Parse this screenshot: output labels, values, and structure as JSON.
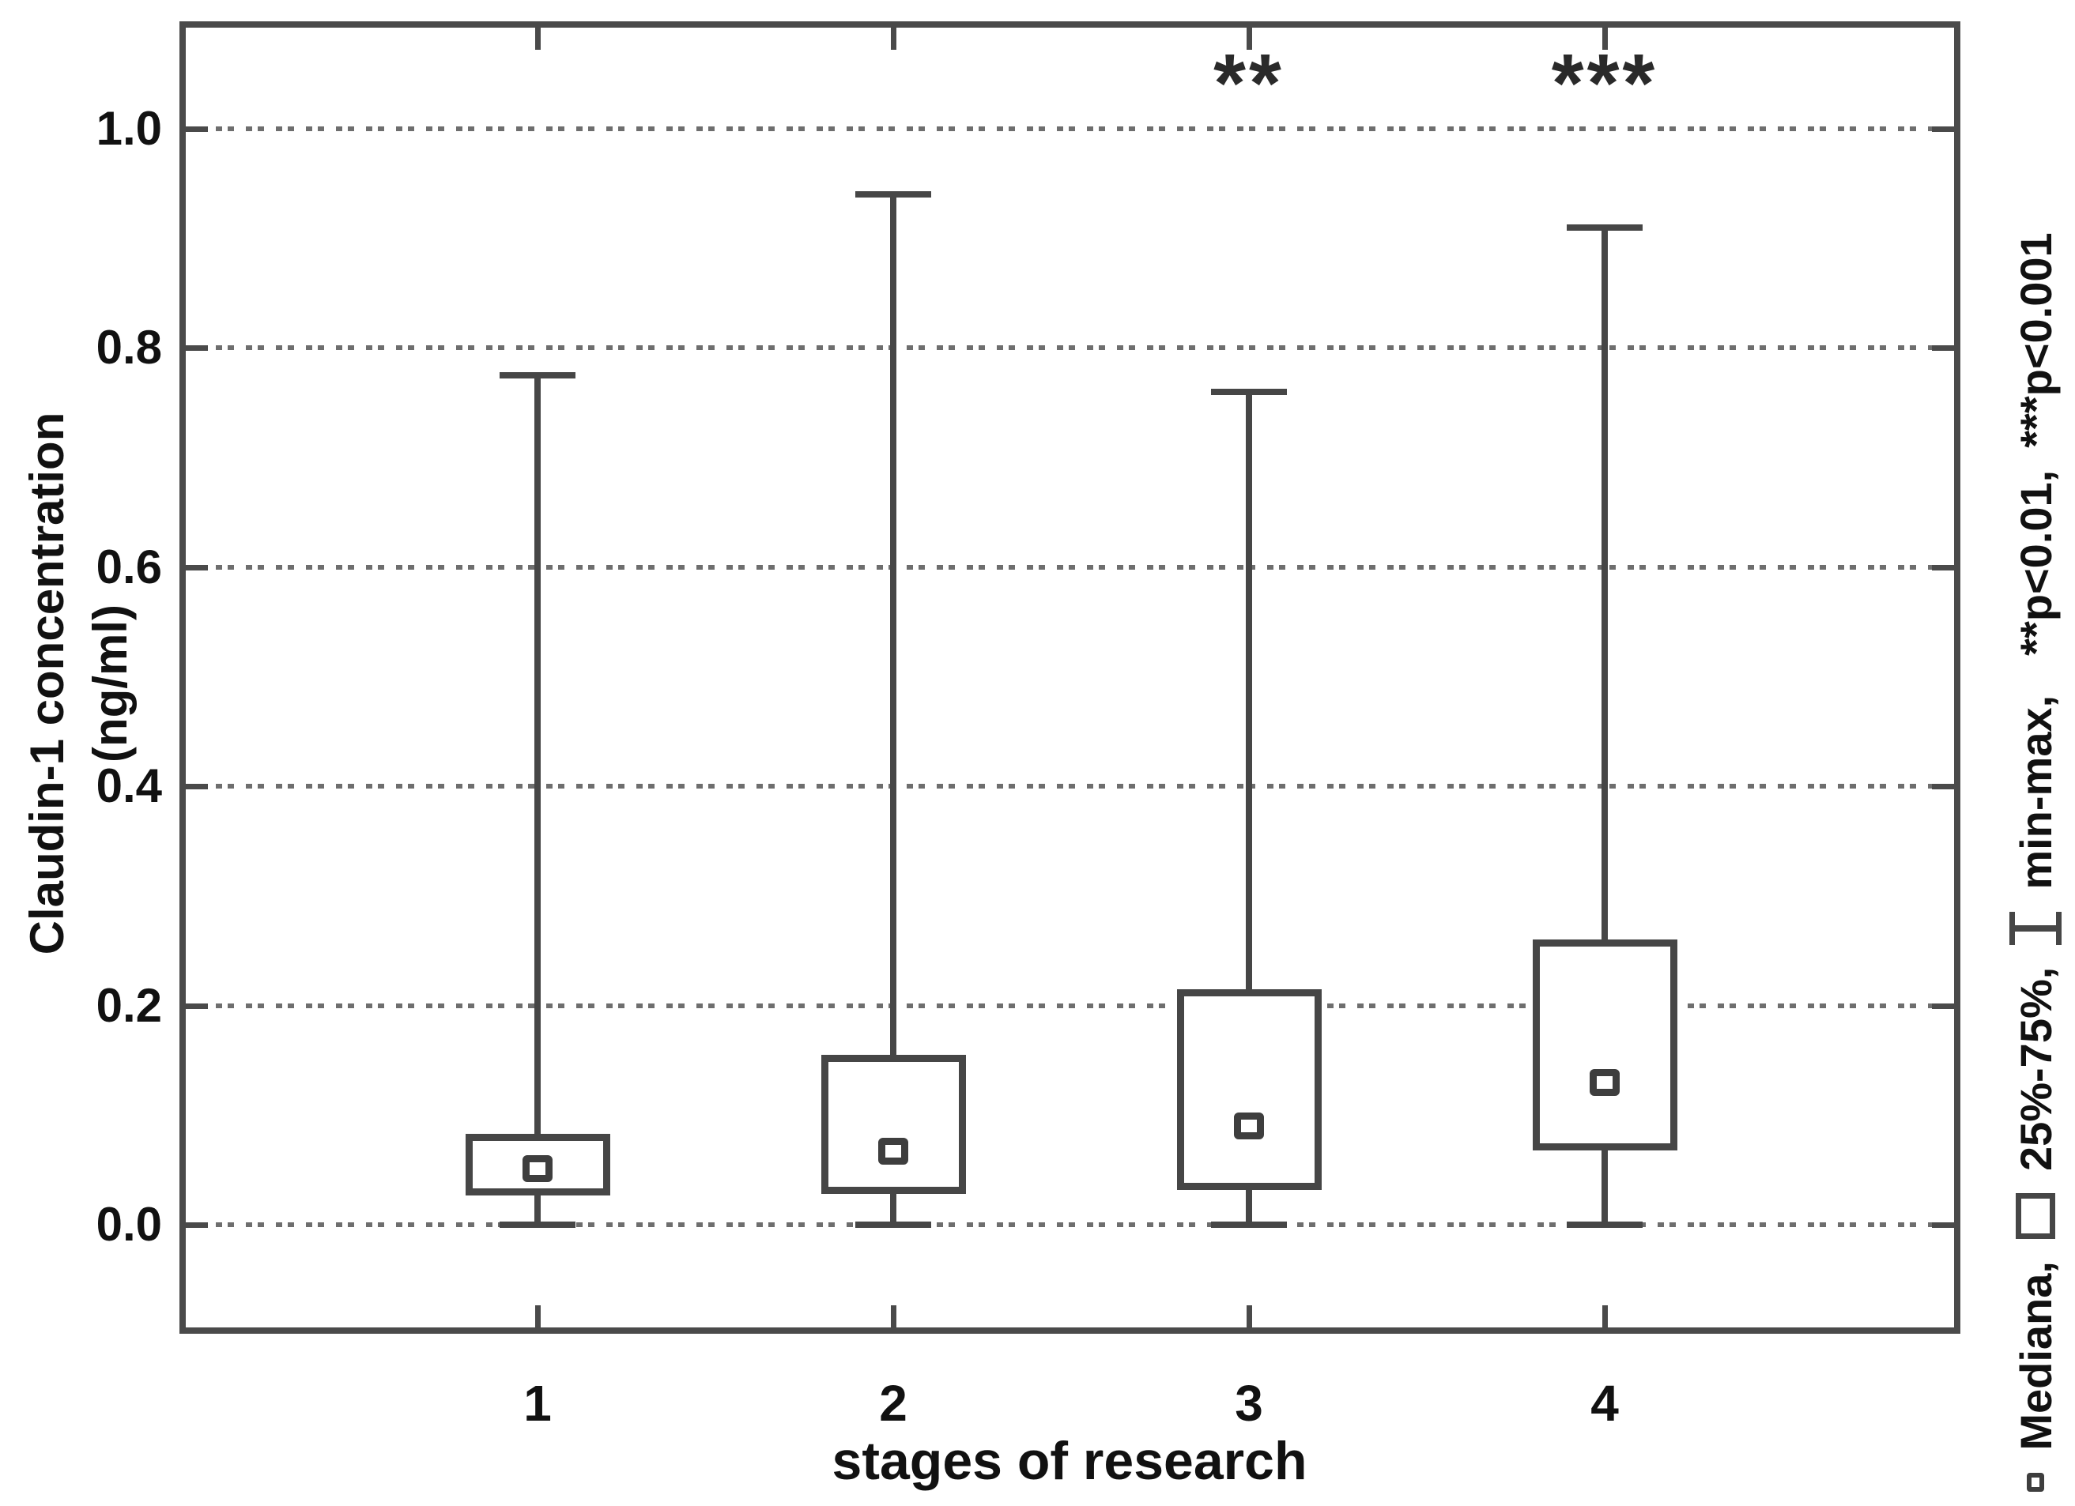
{
  "figure": {
    "background": "#ffffff",
    "line_color": "#464646",
    "text_color": "#111111"
  },
  "chart_data": {
    "type": "box",
    "title": "",
    "xlabel": "stages of research",
    "ylabel": "Claudin-1 concentration (ng/ml)",
    "categories": [
      "1",
      "2",
      "3",
      "4"
    ],
    "yticks": [
      0.0,
      0.2,
      0.4,
      0.6,
      0.8,
      1.0
    ],
    "ytick_labels": [
      "0.0",
      "0.2",
      "0.4",
      "0.6",
      "0.8",
      "1.0"
    ],
    "ylim": [
      -0.1,
      1.1
    ],
    "grid": "horizontal-dotted",
    "boxes": [
      {
        "category": "1",
        "min": 0.0,
        "q1": 0.027,
        "median": 0.051,
        "q3": 0.083,
        "max": 0.775,
        "significance": ""
      },
      {
        "category": "2",
        "min": 0.0,
        "q1": 0.028,
        "median": 0.067,
        "q3": 0.155,
        "max": 0.94,
        "significance": ""
      },
      {
        "category": "3",
        "min": 0.0,
        "q1": 0.032,
        "median": 0.09,
        "q3": 0.215,
        "max": 0.76,
        "significance": "**"
      },
      {
        "category": "4",
        "min": 0.0,
        "q1": 0.068,
        "median": 0.13,
        "q3": 0.26,
        "max": 0.91,
        "significance": "***"
      }
    ]
  },
  "legend": {
    "position": "right-rotated",
    "items": [
      {
        "icon": "median-marker-icon",
        "label": "Mediana,"
      },
      {
        "icon": "iqr-box-icon",
        "label": "25%-75%,"
      },
      {
        "icon": "minmax-whisker-icon",
        "label": "min-max,"
      },
      {
        "icon": "",
        "label": "**p<0.01,"
      },
      {
        "icon": "",
        "label": "***p<0.001"
      }
    ]
  }
}
